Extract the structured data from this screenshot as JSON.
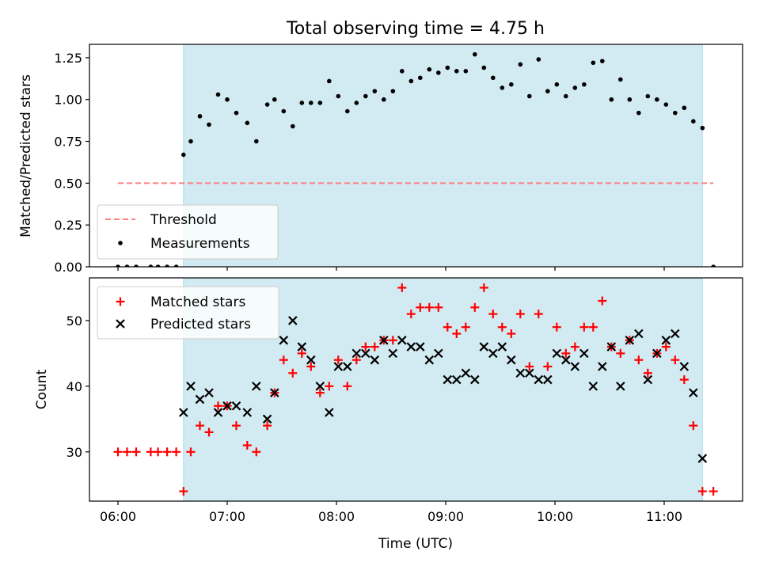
{
  "figure": {
    "title": "Total observing time = 4.75 h",
    "xlabel": "Time (UTC)",
    "xticks": [
      "06:00",
      "07:00",
      "08:00",
      "09:00",
      "10:00",
      "11:00"
    ],
    "shaded_span": {
      "start": "06:36",
      "end": "11:21",
      "color": "#add8e6"
    }
  },
  "chart_data": [
    {
      "type": "scatter",
      "ylabel": "Matched/Predicted stars",
      "ylim": [
        0,
        1.33
      ],
      "yticks": [
        "0.00",
        "0.25",
        "0.50",
        "0.75",
        "1.00",
        "1.25"
      ],
      "threshold": {
        "name": "Threshold",
        "value": 0.5,
        "from": "06:00",
        "to": "11:27",
        "color": "#ff8080"
      },
      "series": [
        {
          "name": "Measurements",
          "color": "#000000",
          "x": [
            "06:00",
            "06:05",
            "06:10",
            "06:18",
            "06:22",
            "06:27",
            "06:32",
            "06:36",
            "06:40",
            "06:45",
            "06:50",
            "06:55",
            "07:00",
            "07:05",
            "07:11",
            "07:16",
            "07:22",
            "07:26",
            "07:31",
            "07:36",
            "07:41",
            "07:46",
            "07:51",
            "07:56",
            "08:01",
            "08:06",
            "08:11",
            "08:16",
            "08:21",
            "08:26",
            "08:31",
            "08:36",
            "08:41",
            "08:46",
            "08:51",
            "08:56",
            "09:01",
            "09:06",
            "09:11",
            "09:16",
            "09:21",
            "09:26",
            "09:31",
            "09:36",
            "09:41",
            "09:46",
            "09:51",
            "09:56",
            "10:01",
            "10:06",
            "10:11",
            "10:16",
            "10:21",
            "10:26",
            "10:31",
            "10:36",
            "10:41",
            "10:46",
            "10:51",
            "10:56",
            "11:01",
            "11:06",
            "11:11",
            "11:16",
            "11:21",
            "11:27"
          ],
          "y": [
            0.0,
            0.0,
            0.0,
            0.0,
            0.0,
            0.0,
            0.0,
            0.67,
            0.75,
            0.9,
            0.85,
            1.03,
            1.0,
            0.92,
            0.86,
            0.75,
            0.97,
            1.0,
            0.93,
            0.84,
            0.98,
            0.98,
            0.98,
            1.11,
            1.02,
            0.93,
            0.98,
            1.02,
            1.05,
            1.0,
            1.05,
            1.17,
            1.11,
            1.13,
            1.18,
            1.16,
            1.19,
            1.17,
            1.17,
            1.27,
            1.19,
            1.13,
            1.07,
            1.09,
            1.21,
            1.02,
            1.24,
            1.05,
            1.09,
            1.02,
            1.07,
            1.09,
            1.22,
            1.23,
            1.0,
            1.12,
            1.0,
            0.92,
            1.02,
            1.0,
            0.97,
            0.92,
            0.95,
            0.87,
            0.83,
            0.0
          ]
        }
      ],
      "legend": {
        "position": "lower-left"
      }
    },
    {
      "type": "scatter",
      "ylabel": "Count",
      "ylim": [
        22.5,
        56.5
      ],
      "yticks": [
        "30",
        "40",
        "50"
      ],
      "series": [
        {
          "name": "Matched stars",
          "marker": "plus",
          "color": "#ff0000",
          "x": [
            "06:00",
            "06:05",
            "06:10",
            "06:18",
            "06:22",
            "06:27",
            "06:32",
            "06:36",
            "06:40",
            "06:45",
            "06:50",
            "06:55",
            "07:00",
            "07:05",
            "07:11",
            "07:16",
            "07:22",
            "07:26",
            "07:31",
            "07:36",
            "07:41",
            "07:46",
            "07:51",
            "07:56",
            "08:01",
            "08:06",
            "08:11",
            "08:16",
            "08:21",
            "08:26",
            "08:31",
            "08:36",
            "08:41",
            "08:46",
            "08:51",
            "08:56",
            "09:01",
            "09:06",
            "09:11",
            "09:16",
            "09:21",
            "09:26",
            "09:31",
            "09:36",
            "09:41",
            "09:46",
            "09:51",
            "09:56",
            "10:01",
            "10:06",
            "10:11",
            "10:16",
            "10:21",
            "10:26",
            "10:31",
            "10:36",
            "10:41",
            "10:46",
            "10:51",
            "10:56",
            "11:01",
            "11:06",
            "11:11",
            "11:16",
            "11:21",
            "11:27"
          ],
          "y": [
            30,
            30,
            30,
            30,
            30,
            30,
            30,
            24,
            30,
            34,
            33,
            37,
            37,
            34,
            31,
            30,
            34,
            39,
            44,
            42,
            45,
            43,
            39,
            40,
            44,
            40,
            44,
            46,
            46,
            47,
            47,
            55,
            51,
            52,
            52,
            52,
            49,
            48,
            49,
            52,
            55,
            51,
            49,
            48,
            51,
            43,
            51,
            43,
            49,
            45,
            46,
            49,
            49,
            53,
            46,
            45,
            47,
            44,
            42,
            45,
            46,
            44,
            41,
            34,
            24,
            24
          ]
        },
        {
          "name": "Predicted stars",
          "marker": "x",
          "color": "#000000",
          "x": [
            "06:36",
            "06:40",
            "06:45",
            "06:50",
            "06:55",
            "07:00",
            "07:05",
            "07:11",
            "07:16",
            "07:22",
            "07:26",
            "07:31",
            "07:36",
            "07:41",
            "07:46",
            "07:51",
            "07:56",
            "08:01",
            "08:06",
            "08:11",
            "08:16",
            "08:21",
            "08:26",
            "08:31",
            "08:36",
            "08:41",
            "08:46",
            "08:51",
            "08:56",
            "09:01",
            "09:06",
            "09:11",
            "09:16",
            "09:21",
            "09:26",
            "09:31",
            "09:36",
            "09:41",
            "09:46",
            "09:51",
            "09:56",
            "10:01",
            "10:06",
            "10:11",
            "10:16",
            "10:21",
            "10:26",
            "10:31",
            "10:36",
            "10:41",
            "10:46",
            "10:51",
            "10:56",
            "11:01",
            "11:06",
            "11:11",
            "11:16",
            "11:21"
          ],
          "y": [
            36,
            40,
            38,
            39,
            36,
            37,
            37,
            36,
            40,
            35,
            39,
            47,
            50,
            46,
            44,
            40,
            36,
            43,
            43,
            45,
            45,
            44,
            47,
            45,
            47,
            46,
            46,
            44,
            45,
            41,
            41,
            42,
            41,
            46,
            45,
            46,
            44,
            42,
            42,
            41,
            41,
            45,
            44,
            43,
            45,
            40,
            43,
            46,
            40,
            47,
            48,
            41,
            45,
            47,
            48,
            43,
            39,
            29
          ]
        }
      ],
      "legend": {
        "position": "upper-left"
      }
    }
  ]
}
